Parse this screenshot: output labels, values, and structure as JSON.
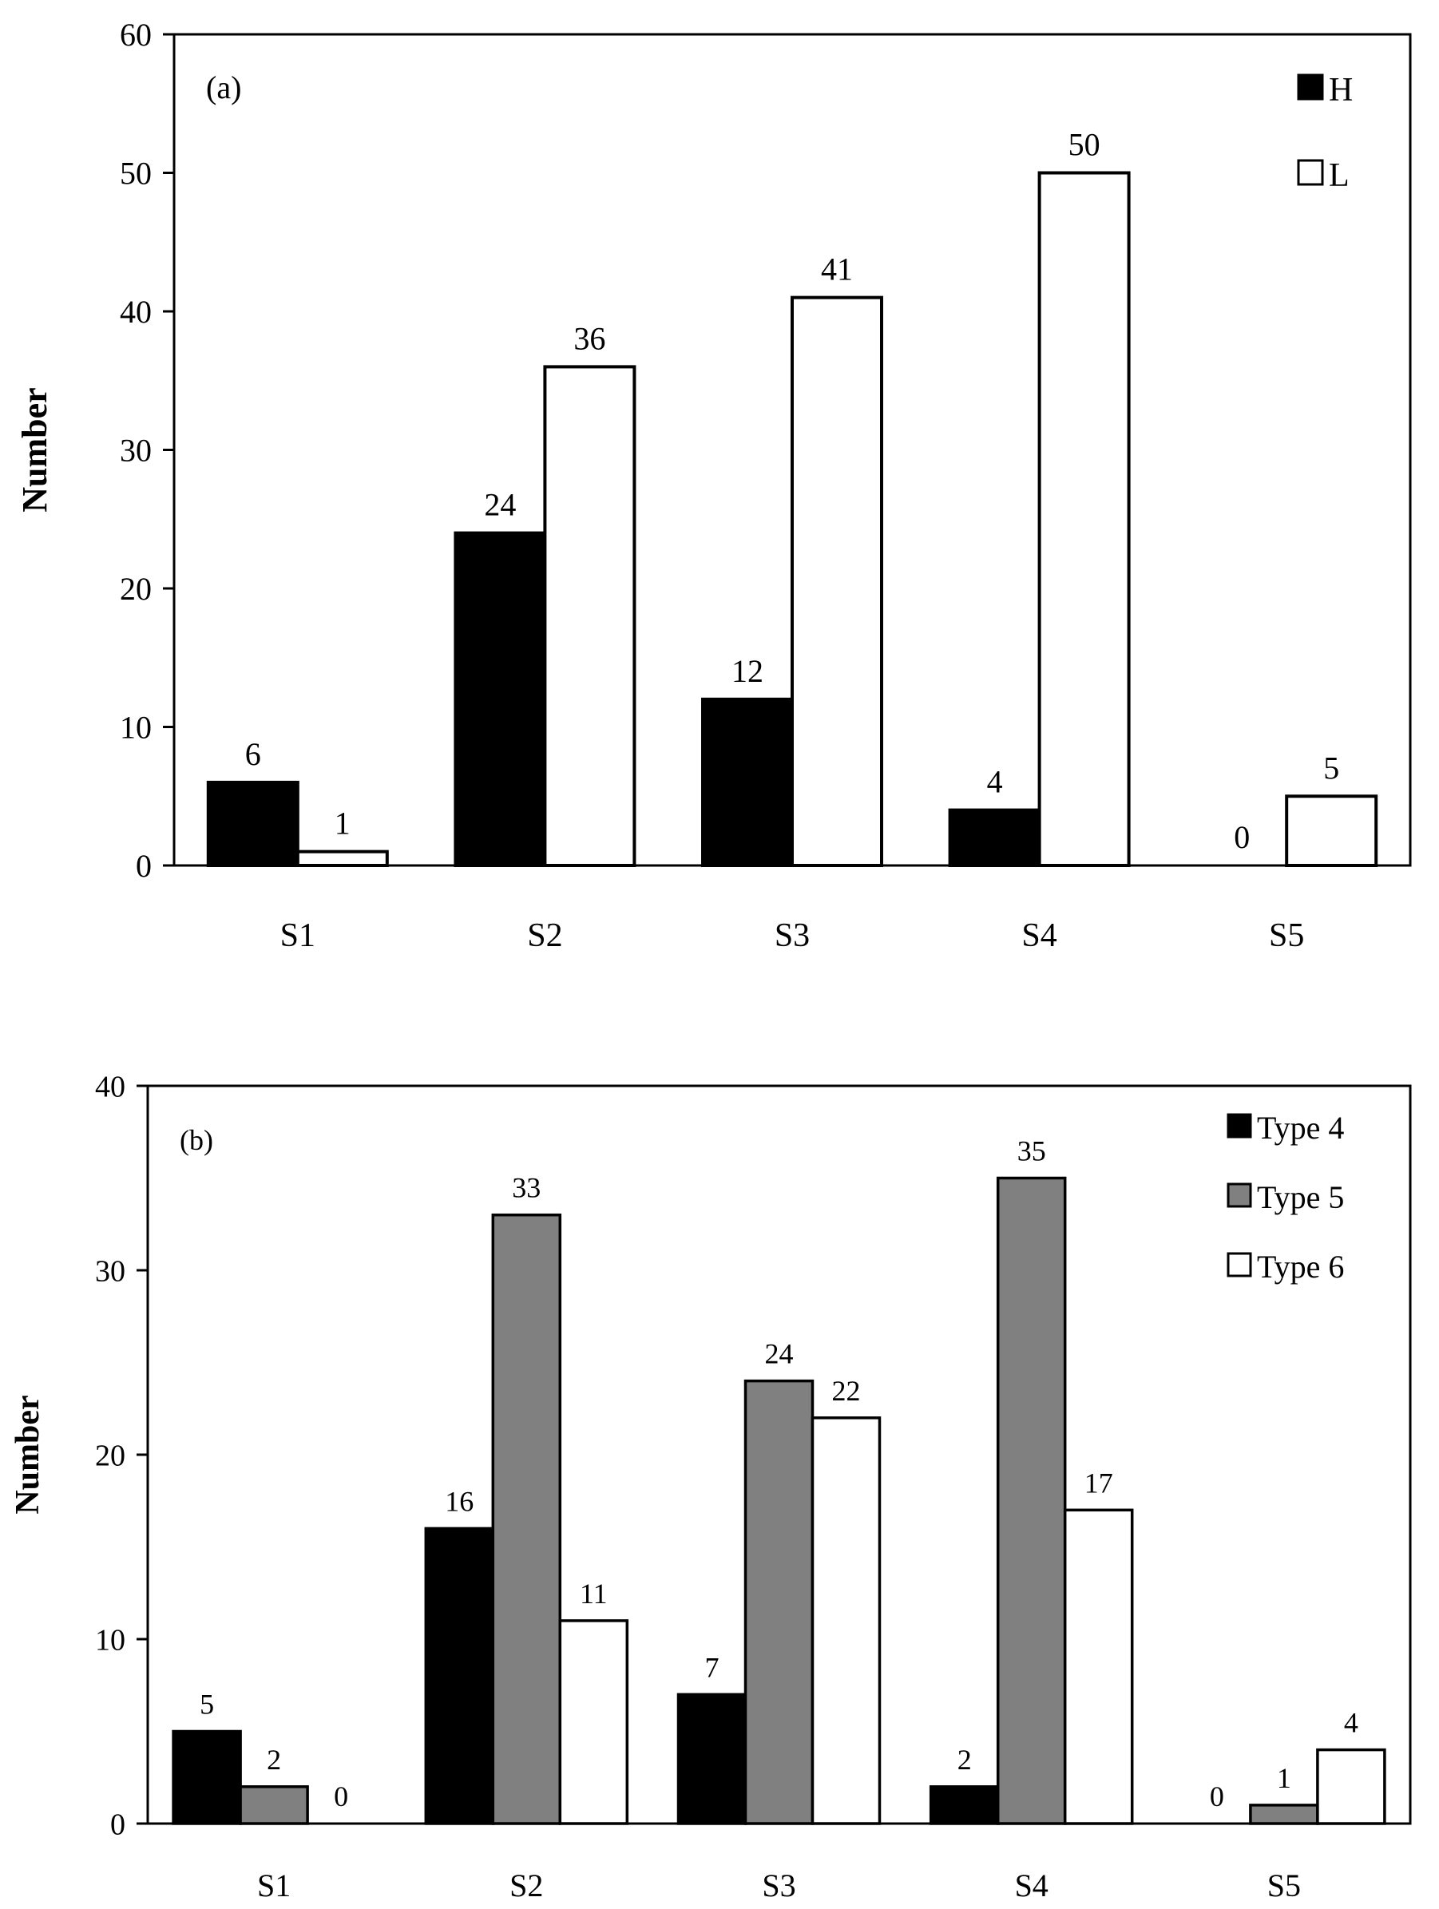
{
  "chart_data": [
    {
      "type": "bar",
      "panel_label": "(a)",
      "ylabel": "Number",
      "xlabel": "",
      "ylim": [
        0,
        60
      ],
      "yticks": [
        0,
        10,
        20,
        30,
        40,
        50,
        60
      ],
      "categories": [
        "S1",
        "S2",
        "S3",
        "S4",
        "S5"
      ],
      "legend_position": "top-right",
      "series": [
        {
          "name": "H",
          "color": "#000000",
          "values": [
            6,
            24,
            12,
            4,
            0
          ]
        },
        {
          "name": "L",
          "color": "#ffffff",
          "values": [
            1,
            36,
            41,
            50,
            5
          ]
        }
      ]
    },
    {
      "type": "bar",
      "panel_label": "(b)",
      "ylabel": "Number",
      "xlabel": "",
      "ylim": [
        0,
        40
      ],
      "yticks": [
        0,
        10,
        20,
        30,
        40
      ],
      "categories": [
        "S1",
        "S2",
        "S3",
        "S4",
        "S5"
      ],
      "legend_position": "top-right",
      "series": [
        {
          "name": "Type 4",
          "color": "#000000",
          "values": [
            5,
            16,
            7,
            2,
            0
          ]
        },
        {
          "name": "Type 5",
          "color": "#808080",
          "values": [
            2,
            33,
            24,
            35,
            1
          ]
        },
        {
          "name": "Type 6",
          "color": "#ffffff",
          "values": [
            0,
            11,
            22,
            17,
            4
          ]
        }
      ]
    }
  ]
}
